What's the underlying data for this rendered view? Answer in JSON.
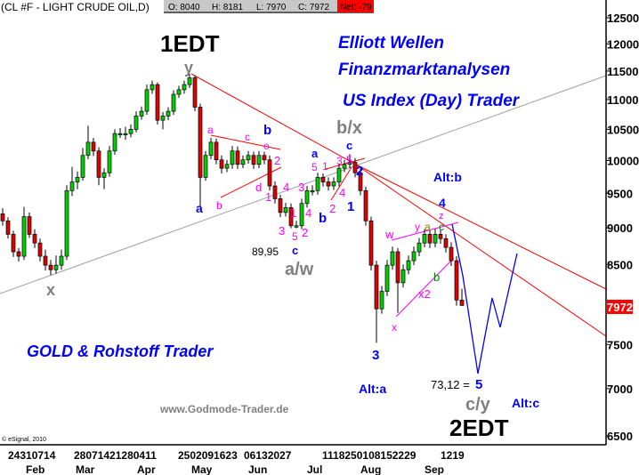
{
  "header": {
    "symbol": "(CL #F - LIGHT CRUDE OIL,D)",
    "open": "O: 8040",
    "high": "H: 8181",
    "low": "L: 7970",
    "close": "C: 7972",
    "net": "Net: -79"
  },
  "titles": {
    "line1": "Elliott Wellen",
    "line2": "Finanzmarktanalysen",
    "line3": "US Index (Day) Trader",
    "gold": "GOLD & Rohstoff Trader",
    "website": "www.Godmode-Trader.de",
    "copyright": "© eSignal, 2010"
  },
  "colors": {
    "up": "#00d000",
    "down": "#e00000",
    "wave_blue": "#0000ff",
    "wave_magenta": "#ff00ff",
    "wave_grey": "#808080",
    "trend_red": "#ff0000",
    "last_price_bg": "#ff0000"
  },
  "chart_data": {
    "type": "candlestick",
    "instrument": "CL #F - LIGHT CRUDE OIL",
    "y_scale": "log",
    "ylim": [
      6500,
      12500
    ],
    "y_ticks": [
      "12500",
      "12000",
      "11500",
      "11000",
      "10500",
      "10000",
      "9500",
      "9000",
      "8500",
      "7500",
      "7000",
      "6500"
    ],
    "last_price": "7972",
    "x_day_groups": [
      "24310714",
      "28071421280411",
      "2502091623",
      "06132027",
      "1118250108152229",
      "1219"
    ],
    "x_months": [
      "Feb",
      "Mar",
      "Apr",
      "May",
      "Jun",
      "Jul",
      "Aug",
      "Sep"
    ],
    "ohlc": [
      [
        9200,
        9280,
        9030,
        9100
      ],
      [
        9100,
        9150,
        8850,
        8910
      ],
      [
        8910,
        8960,
        8600,
        8670
      ],
      [
        8670,
        8720,
        8540,
        8610
      ],
      [
        8610,
        9300,
        8560,
        9160
      ],
      [
        9160,
        9220,
        8860,
        8910
      ],
      [
        8910,
        8980,
        8720,
        8790
      ],
      [
        8790,
        8850,
        8540,
        8610
      ],
      [
        8610,
        8700,
        8420,
        8490
      ],
      [
        8490,
        8560,
        8360,
        8430
      ],
      [
        8430,
        8620,
        8380,
        8490
      ],
      [
        8490,
        8700,
        8430,
        8610
      ],
      [
        8610,
        9620,
        8560,
        9540
      ],
      [
        9540,
        9900,
        9460,
        9670
      ],
      [
        9670,
        9830,
        9560,
        9740
      ],
      [
        9740,
        10200,
        9690,
        10080
      ],
      [
        10080,
        10560,
        10020,
        10290
      ],
      [
        10290,
        10360,
        10070,
        10150
      ],
      [
        10150,
        10210,
        9620,
        9740
      ],
      [
        9740,
        9880,
        9560,
        9810
      ],
      [
        9810,
        10230,
        9750,
        10150
      ],
      [
        10150,
        10500,
        10090,
        10430
      ],
      [
        10430,
        10520,
        10360,
        10430
      ],
      [
        10430,
        10540,
        10330,
        10430
      ],
      [
        10430,
        10580,
        10370,
        10500
      ],
      [
        10500,
        10800,
        10450,
        10720
      ],
      [
        10720,
        10880,
        10660,
        10800
      ],
      [
        10800,
        11260,
        10740,
        11170
      ],
      [
        11170,
        11330,
        11100,
        11260
      ],
      [
        11260,
        11300,
        10580,
        10650
      ],
      [
        10650,
        10790,
        10500,
        10720
      ],
      [
        10720,
        10870,
        10650,
        10800
      ],
      [
        10800,
        11160,
        10740,
        11090
      ],
      [
        11090,
        11240,
        11030,
        11170
      ],
      [
        11170,
        11330,
        11100,
        11260
      ],
      [
        11260,
        11450,
        11200,
        11380
      ],
      [
        11380,
        11420,
        10800,
        10870
      ],
      [
        10870,
        10930,
        9300,
        9740
      ],
      [
        9740,
        10150,
        9690,
        10080
      ],
      [
        10080,
        10360,
        10020,
        10290
      ],
      [
        10290,
        10350,
        9940,
        10010
      ],
      [
        10010,
        10080,
        9800,
        9880
      ],
      [
        9880,
        10010,
        9820,
        9940
      ],
      [
        9940,
        10230,
        9870,
        10150
      ],
      [
        10150,
        10220,
        9870,
        9940
      ],
      [
        9940,
        10080,
        9880,
        10010
      ],
      [
        10010,
        10150,
        9950,
        10080
      ],
      [
        10080,
        10140,
        9870,
        9940
      ],
      [
        9940,
        10150,
        9880,
        10080
      ],
      [
        10080,
        10140,
        9940,
        10010
      ],
      [
        10010,
        10080,
        9540,
        9610
      ],
      [
        9610,
        9680,
        9350,
        9420
      ],
      [
        9420,
        9480,
        9150,
        9220
      ],
      [
        9220,
        9360,
        9160,
        9290
      ],
      [
        9290,
        9350,
        8995,
        9030
      ],
      [
        9030,
        9100,
        8995,
        9030
      ],
      [
        9030,
        9420,
        8980,
        9350
      ],
      [
        9350,
        9610,
        9290,
        9540
      ],
      [
        9540,
        9620,
        9470,
        9540
      ],
      [
        9540,
        9810,
        9480,
        9740
      ],
      [
        9740,
        9800,
        9600,
        9670
      ],
      [
        9670,
        9740,
        9540,
        9610
      ],
      [
        9610,
        9740,
        9550,
        9670
      ],
      [
        9670,
        9950,
        9600,
        9880
      ],
      [
        9880,
        10010,
        9820,
        9940
      ],
      [
        9940,
        10100,
        9880,
        9970
      ],
      [
        9970,
        10040,
        9740,
        9810
      ],
      [
        9810,
        9880,
        9470,
        9540
      ],
      [
        9540,
        9600,
        9030,
        9100
      ],
      [
        9100,
        9160,
        8420,
        8490
      ],
      [
        8490,
        8550,
        7520,
        7930
      ],
      [
        7930,
        8220,
        7870,
        8150
      ],
      [
        8150,
        8560,
        8090,
        8490
      ],
      [
        8490,
        8740,
        8430,
        8670
      ],
      [
        8670,
        8720,
        7880,
        8260
      ],
      [
        8260,
        8500,
        8200,
        8430
      ],
      [
        8430,
        8620,
        8370,
        8550
      ],
      [
        8550,
        8740,
        8490,
        8670
      ],
      [
        8670,
        8860,
        8610,
        8790
      ],
      [
        8790,
        8980,
        8730,
        8910
      ],
      [
        8910,
        8970,
        8720,
        8790
      ],
      [
        8790,
        8990,
        8730,
        8910
      ],
      [
        8910,
        8970,
        8780,
        8850
      ],
      [
        8850,
        8910,
        8660,
        8730
      ],
      [
        8730,
        8800,
        8480,
        8550
      ],
      [
        8550,
        8610,
        7970,
        8040
      ],
      [
        8040,
        8181,
        7970,
        7972
      ]
    ],
    "annotations": [
      "1EDT",
      "2EDT",
      "y",
      "x",
      "b/x",
      "a/w",
      "c/y",
      "a",
      "b",
      "c",
      "a",
      "b",
      "c",
      "1",
      "2",
      "3",
      "4",
      "5",
      "Alt:b",
      "Alt:a",
      "Alt:c",
      "a",
      "c",
      "e",
      "2",
      "b",
      "d",
      "1",
      "4",
      "3",
      "4",
      "1",
      "3",
      "5",
      "2",
      "5",
      "1",
      "3",
      "5",
      "4",
      "2",
      "w",
      "y",
      "z",
      "x2",
      "x",
      "a",
      "c",
      "b",
      "89,95",
      "73,12 ="
    ]
  }
}
